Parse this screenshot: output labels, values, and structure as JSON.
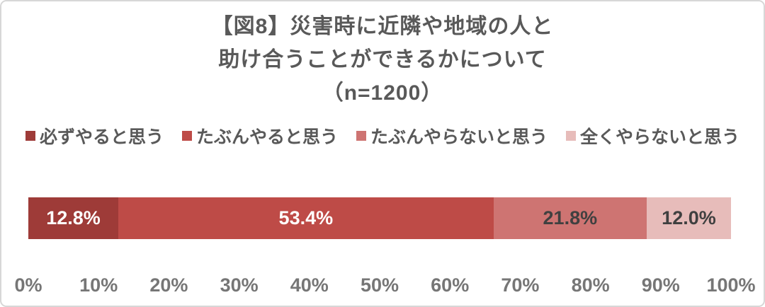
{
  "title": {
    "lines": [
      "【図8】災害時に近隣や地域の人と",
      "助け合うことができるかについて",
      "（n=1200）"
    ]
  },
  "chart_data": {
    "type": "bar",
    "variant": "horizontal-stacked-single-bar",
    "title": "【図8】災害時に近隣や地域の人と助け合うことができるかについて（n=1200）",
    "n_label": "（n=1200）",
    "n": 1200,
    "legend_position": "top",
    "grid": false,
    "series": [
      {
        "name": "必ずやると思う",
        "value": 12.8,
        "label": "12.8%",
        "color": "#9E3B38",
        "label_color": "#FFFFFF"
      },
      {
        "name": "たぶんやると思う",
        "value": 53.4,
        "label": "53.4%",
        "color": "#BE4B47",
        "label_color": "#FFFFFF"
      },
      {
        "name": "たぶんやらないと思う",
        "value": 21.8,
        "label": "21.8%",
        "color": "#CE7472",
        "label_color": "#404040"
      },
      {
        "name": "全くやらないと思う",
        "value": 12.0,
        "label": "12.0%",
        "color": "#E7BCBA",
        "label_color": "#404040"
      }
    ],
    "x_axis": {
      "min": 0,
      "max": 100,
      "ticks": [
        "0%",
        "10%",
        "20%",
        "30%",
        "40%",
        "50%",
        "60%",
        "70%",
        "80%",
        "90%",
        "100%"
      ]
    },
    "colors": {
      "title_text": "#595959",
      "legend_text": "#595959",
      "axis_text": "#767676",
      "card_border": "#d7d7d7"
    }
  }
}
